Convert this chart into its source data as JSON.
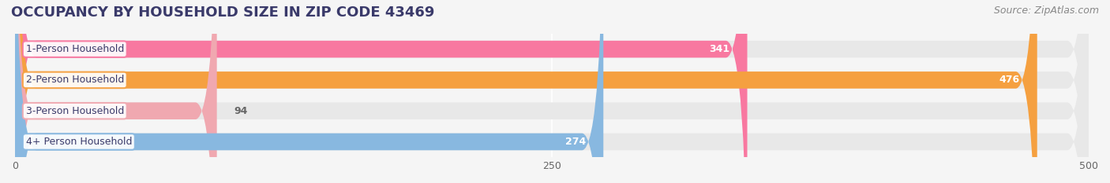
{
  "title": "OCCUPANCY BY HOUSEHOLD SIZE IN ZIP CODE 43469",
  "source": "Source: ZipAtlas.com",
  "categories": [
    "1-Person Household",
    "2-Person Household",
    "3-Person Household",
    "4+ Person Household"
  ],
  "values": [
    341,
    476,
    94,
    274
  ],
  "bar_colors": [
    "#F878A0",
    "#F5A040",
    "#F0A8B0",
    "#88B8E0"
  ],
  "label_bg_colors": [
    "#F878A0",
    "#F5A040",
    "#F0A8B0",
    "#88B8E0"
  ],
  "xlim": [
    0,
    500
  ],
  "xticks": [
    0,
    250,
    500
  ],
  "background_color": "#f5f5f5",
  "bar_bg_color": "#e8e8e8",
  "title_color": "#3a3a6a",
  "source_color": "#888888",
  "label_color": "#3a3a6a",
  "value_color_inside": "#ffffff",
  "value_color_outside": "#666666",
  "title_fontsize": 13,
  "source_fontsize": 9,
  "label_fontsize": 9,
  "value_fontsize": 9,
  "bar_height": 0.55
}
